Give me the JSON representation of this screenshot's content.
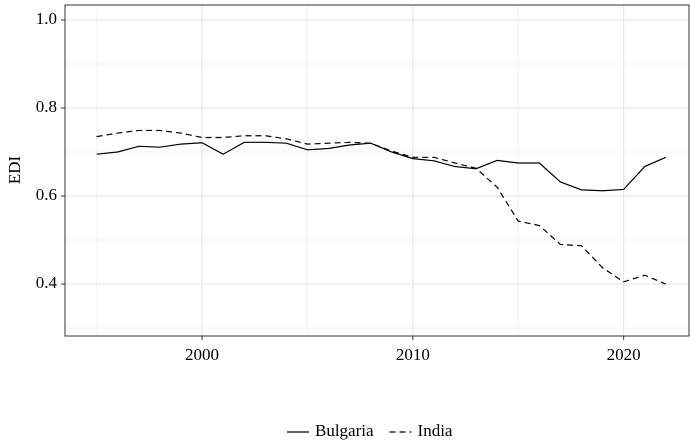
{
  "chart_data": {
    "type": "line",
    "x": [
      1995,
      1996,
      1997,
      1998,
      1999,
      2000,
      2001,
      2002,
      2003,
      2004,
      2005,
      2006,
      2007,
      2008,
      2009,
      2010,
      2011,
      2012,
      2013,
      2014,
      2015,
      2016,
      2017,
      2018,
      2019,
      2020,
      2021,
      2022
    ],
    "series": [
      {
        "name": "Bulgaria",
        "color": "#000000",
        "linestyle": "solid",
        "values": [
          0.695,
          0.7,
          0.713,
          0.711,
          0.718,
          0.721,
          0.695,
          0.722,
          0.722,
          0.72,
          0.705,
          0.708,
          0.716,
          0.72,
          0.7,
          0.685,
          0.68,
          0.667,
          0.662,
          0.681,
          0.675,
          0.675,
          0.632,
          0.614,
          0.612,
          0.615,
          0.667,
          0.688
        ]
      },
      {
        "name": "India",
        "color": "#000000",
        "linestyle": "dashed",
        "values": [
          0.735,
          0.743,
          0.749,
          0.749,
          0.743,
          0.733,
          0.733,
          0.737,
          0.737,
          0.73,
          0.718,
          0.72,
          0.722,
          0.72,
          0.702,
          0.688,
          0.688,
          0.675,
          0.663,
          0.62,
          0.543,
          0.533,
          0.49,
          0.487,
          0.437,
          0.405,
          0.42,
          0.4
        ]
      }
    ],
    "ylabel": "EDI",
    "xlim": [
      1993.5,
      2023.1
    ],
    "xticks": [
      2000,
      2010,
      2020
    ],
    "xminor": [
      1995,
      2005,
      2015
    ],
    "ylim": [
      0.282,
      1.034
    ],
    "yticks": [
      {
        "value": 0.4,
        "label": "0.4"
      },
      {
        "value": 0.6,
        "label": "0.6"
      },
      {
        "value": 0.8,
        "label": "0.8"
      },
      {
        "value": 1.0,
        "label": "1.0"
      }
    ],
    "yminor": [
      0.3,
      0.5,
      0.7,
      0.9
    ],
    "grid": true,
    "legend": "bottom"
  }
}
